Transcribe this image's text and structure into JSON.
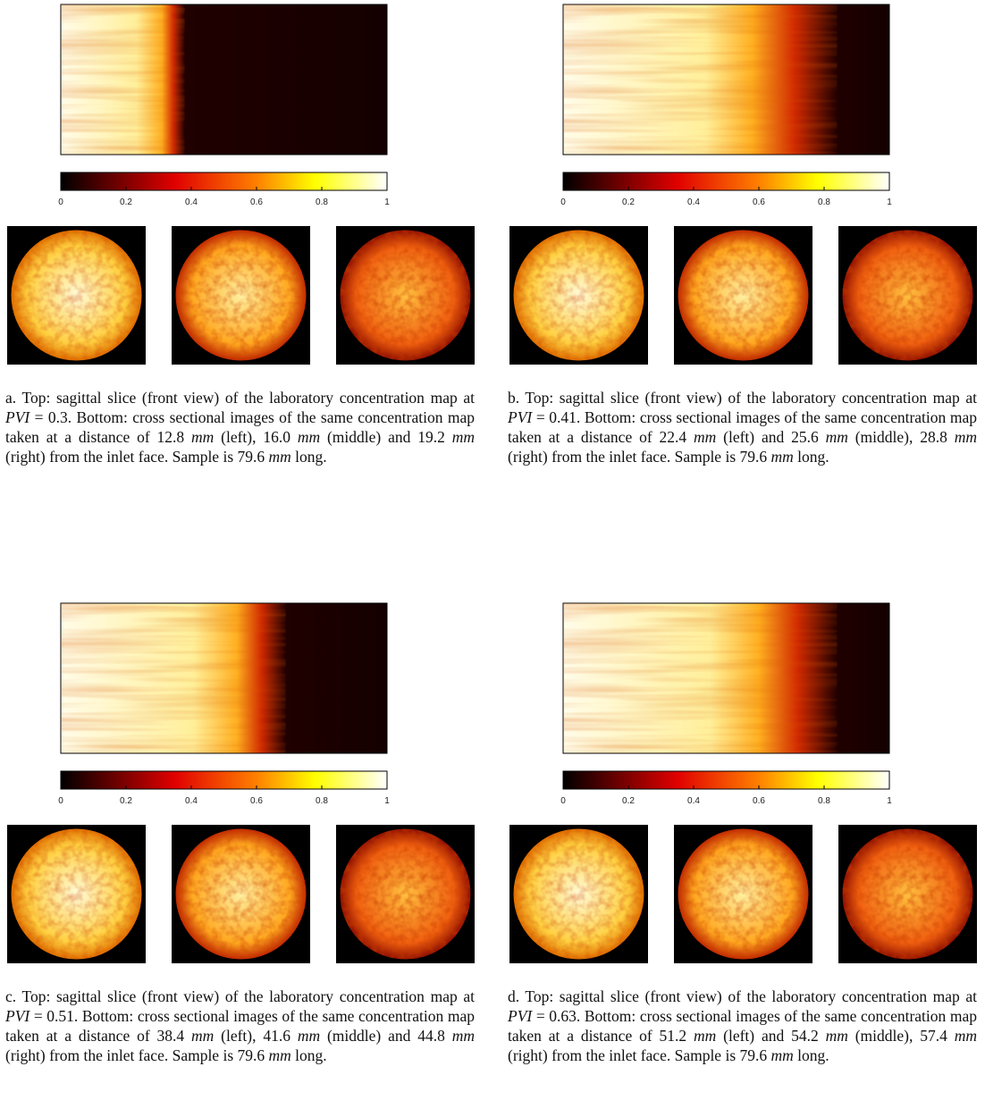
{
  "panels": [
    {
      "colorbar": {
        "lim": [
          0,
          1
        ],
        "ticks": [
          0,
          0.2,
          0.4,
          0.6,
          0.8,
          1
        ]
      },
      "caption": [
        "a. Top: sagittal slice (front view) of the laboratory concentration map at ",
        "PVI",
        " = 0.3. Bottom: cross sectional images of the same concentration map taken at a distance of 12.8 ",
        "mm",
        " (left), 16.0 ",
        "mm",
        " (middle) and 19.2 ",
        "mm",
        " (right) from the inlet face. Sample is 79.6 ",
        "mm",
        " long."
      ]
    },
    {
      "colorbar": {
        "lim": [
          0,
          1
        ],
        "ticks": [
          0,
          0.2,
          0.4,
          0.6,
          0.8,
          1
        ]
      },
      "caption": [
        "b. Top: sagittal slice (front view) of the laboratory concentration map at ",
        "PVI",
        " = 0.41. Bottom: cross sectional images of the same concentration map taken at a distance of 22.4 ",
        "mm",
        " (left) and 25.6 ",
        "mm",
        " (middle), 28.8 ",
        "mm",
        " (right) from the inlet face. Sample is 79.6 ",
        "mm",
        " long."
      ]
    },
    {
      "colorbar": {
        "lim": [
          0,
          1
        ],
        "ticks": [
          0,
          0.2,
          0.4,
          0.6,
          0.8,
          1
        ]
      },
      "caption": [
        "c. Top: sagittal slice (front view) of the laboratory concentration map at ",
        "PVI",
        " = 0.51. Bottom: cross sectional images of the same concentration map taken at a distance of 38.4 ",
        "mm",
        " (left), 41.6 ",
        "mm",
        " (middle) and 44.8 ",
        "mm",
        " (right) from the inlet face. Sample is 79.6 ",
        "mm",
        " long."
      ]
    },
    {
      "colorbar": {
        "lim": [
          0,
          1
        ],
        "ticks": [
          0,
          0.2,
          0.4,
          0.6,
          0.8,
          1
        ]
      },
      "caption": [
        "d. Top: sagittal slice (front view) of the laboratory concentration map at ",
        "PVI",
        " = 0.63. Bottom: cross sectional images of the same concentration map taken at a distance of 51.2 ",
        "mm",
        " (left) and 54.2 ",
        "mm",
        " (middle), 57.4 ",
        "mm",
        " (right) from the inlet face. Sample is 79.6 ",
        "mm",
        " long."
      ]
    }
  ]
}
